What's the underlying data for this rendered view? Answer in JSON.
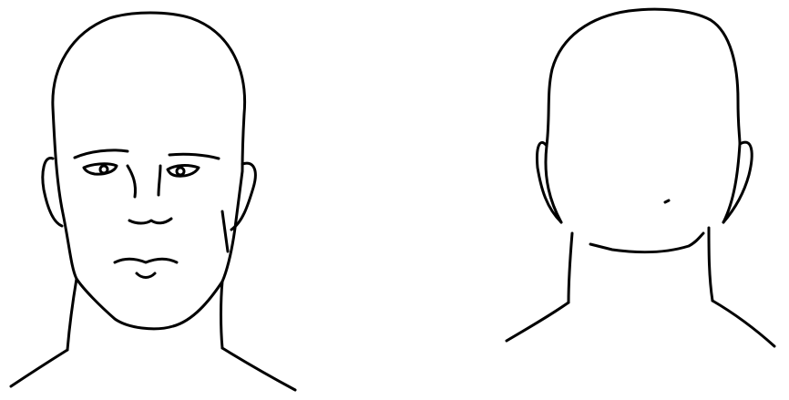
{
  "diagram": {
    "views": [
      {
        "id": "front",
        "name": "head-front-view"
      },
      {
        "id": "back",
        "name": "head-back-view"
      }
    ]
  },
  "colors": {
    "line": "#000000",
    "background": "#ffffff"
  }
}
